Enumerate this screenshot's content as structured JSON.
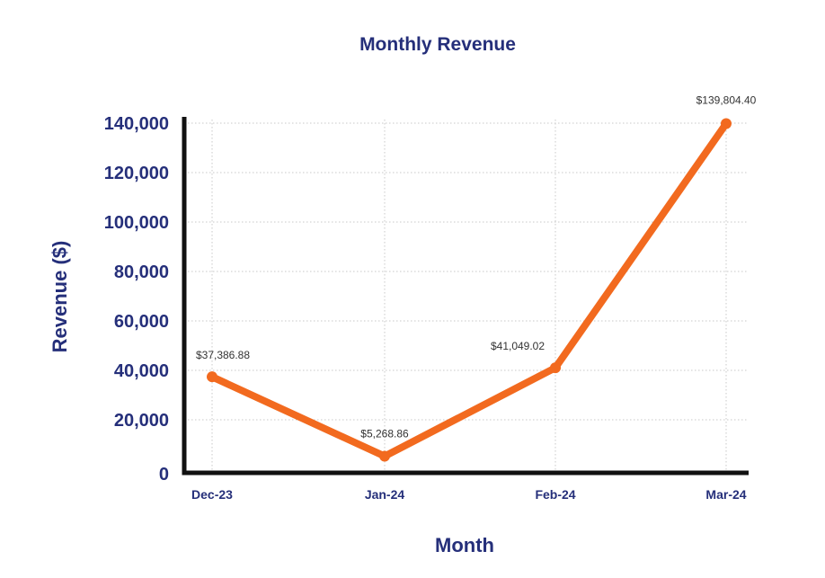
{
  "chart_data": {
    "type": "line",
    "title": "Monthly Revenue",
    "xlabel": "Month",
    "ylabel": "Revenue ($)",
    "categories": [
      "Dec-23",
      "Jan-24",
      "Feb-24",
      "Mar-24"
    ],
    "series": [
      {
        "name": "Revenue",
        "values": [
          37386.88,
          5268.86,
          41049.02,
          139804.4
        ],
        "labels": [
          "$37,386.88",
          "$5,268.86",
          "$41,049.02",
          "$139,804.40"
        ]
      }
    ],
    "ylim": [
      0,
      140000
    ],
    "yticks": [
      0,
      20000,
      40000,
      60000,
      80000,
      100000,
      120000,
      140000
    ],
    "ytick_labels": [
      "0",
      "20,000",
      "40,000",
      "60,000",
      "80,000",
      "100,000",
      "120,000",
      "140,000"
    ],
    "grid": true,
    "colors": {
      "line": "#f26a1f",
      "text": "#252f7a",
      "axis": "#111111",
      "grid": "#c8c8c8",
      "label": "#333333"
    }
  }
}
